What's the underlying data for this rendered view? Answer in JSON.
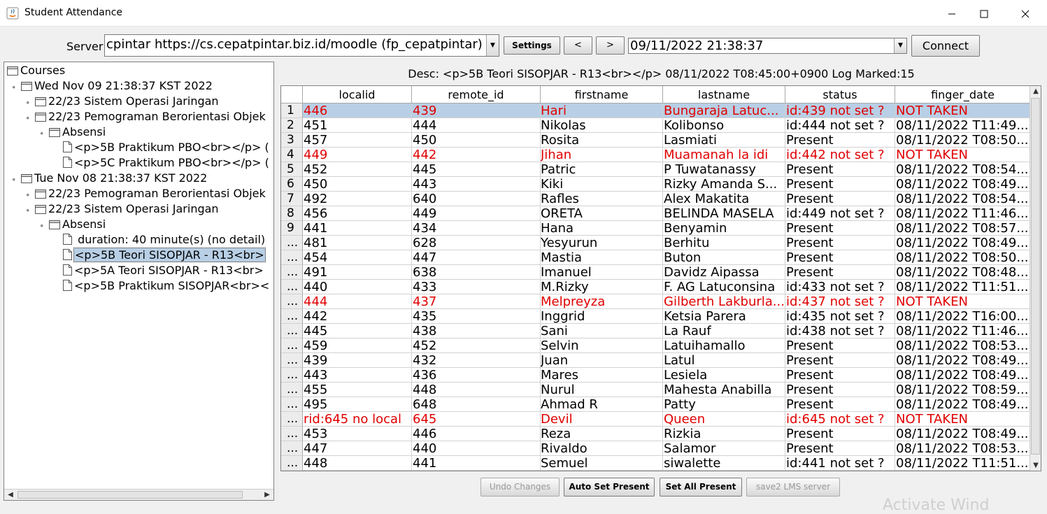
{
  "window": {
    "title": "Student Attendance"
  },
  "toolbar": {
    "server_label": "Server",
    "server_value": "cpintar https://cs.cepatpintar.biz.id/moodle (fp_cepatpintar)",
    "settings_label": "Settings",
    "prev_label": "<",
    "next_label": ">",
    "date_value": "09/11/2022 21:38:37",
    "connect_label": "Connect"
  },
  "tree": {
    "items": [
      {
        "label": "Courses",
        "level": 0,
        "type": "folder"
      },
      {
        "label": "Wed Nov 09 21:38:37 KST 2022",
        "level": 1,
        "type": "folder"
      },
      {
        "label": "22/23  Sistem Operasi Jaringan",
        "level": 2,
        "type": "folder"
      },
      {
        "label": "22/23  Pemograman Berorientasi Objek",
        "level": 2,
        "type": "folder"
      },
      {
        "label": "Absensi",
        "level": 3,
        "type": "folder"
      },
      {
        "label": "<p>5B Praktikum PBO<br></p>  (",
        "level": 4,
        "type": "file"
      },
      {
        "label": "<p>5C Praktikum PBO<br></p>  (",
        "level": 4,
        "type": "file"
      },
      {
        "label": "Tue Nov 08 21:38:37 KST 2022",
        "level": 1,
        "type": "folder"
      },
      {
        "label": "22/23  Pemograman Berorientasi Objek",
        "level": 2,
        "type": "folder"
      },
      {
        "label": "22/23 Sistem Operasi Jaringan",
        "level": 2,
        "type": "folder"
      },
      {
        "label": "Absensi",
        "level": 3,
        "type": "folder"
      },
      {
        "label": " duration: 40 minute(s) (no detail)",
        "level": 4,
        "type": "file"
      },
      {
        "label": "<p>5B Teori SISOPJAR - R13<br>",
        "level": 4,
        "type": "file",
        "selected": true
      },
      {
        "label": "<p>5A Teori SISOPJAR - R13<br>",
        "level": 4,
        "type": "file"
      },
      {
        "label": "<p>5B Praktikum SISOPJAR<br><",
        "level": 4,
        "type": "file"
      }
    ]
  },
  "desc": "Desc:  <p>5B Teori SISOPJAR - R13<br></p> 08/11/2022 T08:45:00+0900 Log Marked:15",
  "table": {
    "columns": [
      "",
      "localid",
      "remote_id",
      "firstname",
      "lastname",
      "status",
      "finger_date"
    ],
    "rows": [
      {
        "n": "1",
        "localid": "446",
        "remote_id": "439",
        "firstname": "Hari",
        "lastname": " Bungaraja Latuc...",
        "status": "id:439 not set ?",
        "finger_date": "NOT TAKEN",
        "red": true,
        "selected": true
      },
      {
        "n": "2",
        "localid": "451",
        "remote_id": "444",
        "firstname": "Nikolas",
        "lastname": " Kolibonso",
        "status": "id:444 not set ?",
        "finger_date": "08/11/2022 T11:49..."
      },
      {
        "n": "3",
        "localid": "457",
        "remote_id": "450",
        "firstname": "Rosita",
        "lastname": " Lasmiati",
        "status": "Present",
        "finger_date": "08/11/2022 T08:50..."
      },
      {
        "n": "4",
        "localid": "449",
        "remote_id": "442",
        "firstname": "Jihan",
        "lastname": " Muamanah la idi",
        "status": "id:442 not set ?",
        "finger_date": "NOT TAKEN",
        "red": true
      },
      {
        "n": "5",
        "localid": "452",
        "remote_id": "445",
        "firstname": "Patric",
        "lastname": " P Tuwatanassy",
        "status": "Present",
        "finger_date": "08/11/2022 T08:54..."
      },
      {
        "n": "6",
        "localid": "450",
        "remote_id": "443",
        "firstname": "Kiki",
        "lastname": " Rizky Amanda S...",
        "status": "Present",
        "finger_date": "08/11/2022 T08:49..."
      },
      {
        "n": "7",
        "localid": "492",
        "remote_id": "640",
        "firstname": "Rafles",
        "lastname": "Alex Makatita",
        "status": "Present",
        "finger_date": "08/11/2022 T08:54..."
      },
      {
        "n": "8",
        "localid": "456",
        "remote_id": "449",
        "firstname": "ORETA",
        "lastname": "BELINDA MASELA",
        "status": "id:449 not set ?",
        "finger_date": "08/11/2022 T11:46..."
      },
      {
        "n": "9",
        "localid": "441",
        "remote_id": "434",
        "firstname": "Hana",
        "lastname": "Benyamin",
        "status": "Present",
        "finger_date": "08/11/2022 T08:57..."
      },
      {
        "n": "...",
        "localid": "481",
        "remote_id": "628",
        "firstname": "Yesyurun",
        "lastname": "Berhitu",
        "status": "Present",
        "finger_date": "08/11/2022 T08:49..."
      },
      {
        "n": "...",
        "localid": "454",
        "remote_id": "447",
        "firstname": "Mastia",
        "lastname": "Buton",
        "status": "Present",
        "finger_date": "08/11/2022 T08:50..."
      },
      {
        "n": "...",
        "localid": "491",
        "remote_id": "638",
        "firstname": "Imanuel",
        "lastname": "Davidz Aipassa",
        "status": "Present",
        "finger_date": "08/11/2022 T08:48..."
      },
      {
        "n": "...",
        "localid": "440",
        "remote_id": "433",
        "firstname": "M.Rizky",
        "lastname": "F. AG Latuconsina",
        "status": "id:433 not set ?",
        "finger_date": "08/11/2022 T11:51..."
      },
      {
        "n": "...",
        "localid": "444",
        "remote_id": "437",
        "firstname": "Melpreyza",
        "lastname": "Gilberth Lakburla...",
        "status": "id:437 not set ?",
        "finger_date": "NOT TAKEN",
        "red": true
      },
      {
        "n": "...",
        "localid": "442",
        "remote_id": "435",
        "firstname": "Inggrid",
        "lastname": "Ketsia Parera",
        "status": "id:435 not set ?",
        "finger_date": "08/11/2022 T16:00..."
      },
      {
        "n": "...",
        "localid": "445",
        "remote_id": "438",
        "firstname": "Sani",
        "lastname": "La Rauf",
        "status": "id:438 not set ?",
        "finger_date": "08/11/2022 T11:46..."
      },
      {
        "n": "...",
        "localid": "459",
        "remote_id": "452",
        "firstname": "Selvin",
        "lastname": "Latuihamallo",
        "status": "Present",
        "finger_date": "08/11/2022 T08:53..."
      },
      {
        "n": "...",
        "localid": "439",
        "remote_id": "432",
        "firstname": "Juan",
        "lastname": "Latul",
        "status": "Present",
        "finger_date": "08/11/2022 T08:49..."
      },
      {
        "n": "...",
        "localid": "443",
        "remote_id": "436",
        "firstname": "Mares",
        "lastname": "Lesiela",
        "status": "Present",
        "finger_date": "08/11/2022 T08:49..."
      },
      {
        "n": "...",
        "localid": "455",
        "remote_id": "448",
        "firstname": "Nurul",
        "lastname": "Mahesta Anabilla",
        "status": "Present",
        "finger_date": "08/11/2022 T08:59..."
      },
      {
        "n": "...",
        "localid": "495",
        "remote_id": "648",
        "firstname": "Ahmad R",
        "lastname": "Patty",
        "status": "Present",
        "finger_date": "08/11/2022 T08:49..."
      },
      {
        "n": "...",
        "localid": "rid:645 no local",
        "remote_id": "645",
        "firstname": "Devil",
        "lastname": "Queen",
        "status": "id:645 not set ?",
        "finger_date": "NOT TAKEN",
        "red": true
      },
      {
        "n": "...",
        "localid": "453",
        "remote_id": "446",
        "firstname": "Reza",
        "lastname": "Rizkia",
        "status": "Present",
        "finger_date": "08/11/2022 T08:49..."
      },
      {
        "n": "...",
        "localid": "447",
        "remote_id": "440",
        "firstname": "Rivaldo",
        "lastname": "Salamor",
        "status": "Present",
        "finger_date": "08/11/2022 T08:53..."
      },
      {
        "n": "...",
        "localid": "448",
        "remote_id": "441",
        "firstname": "Semuel",
        "lastname": "siwalette",
        "status": "id:441 not set ?",
        "finger_date": "08/11/2022 T11:51..."
      }
    ]
  },
  "bottom": {
    "undo_label": "Undo Changes",
    "auto_label": "Auto Set Present",
    "setall_label": "Set All Present",
    "save_label": "save2 LMS server"
  },
  "watermark": "Activate Wind",
  "colors": {
    "selection": "#b8cfe5",
    "alert_text": "#e00000"
  }
}
